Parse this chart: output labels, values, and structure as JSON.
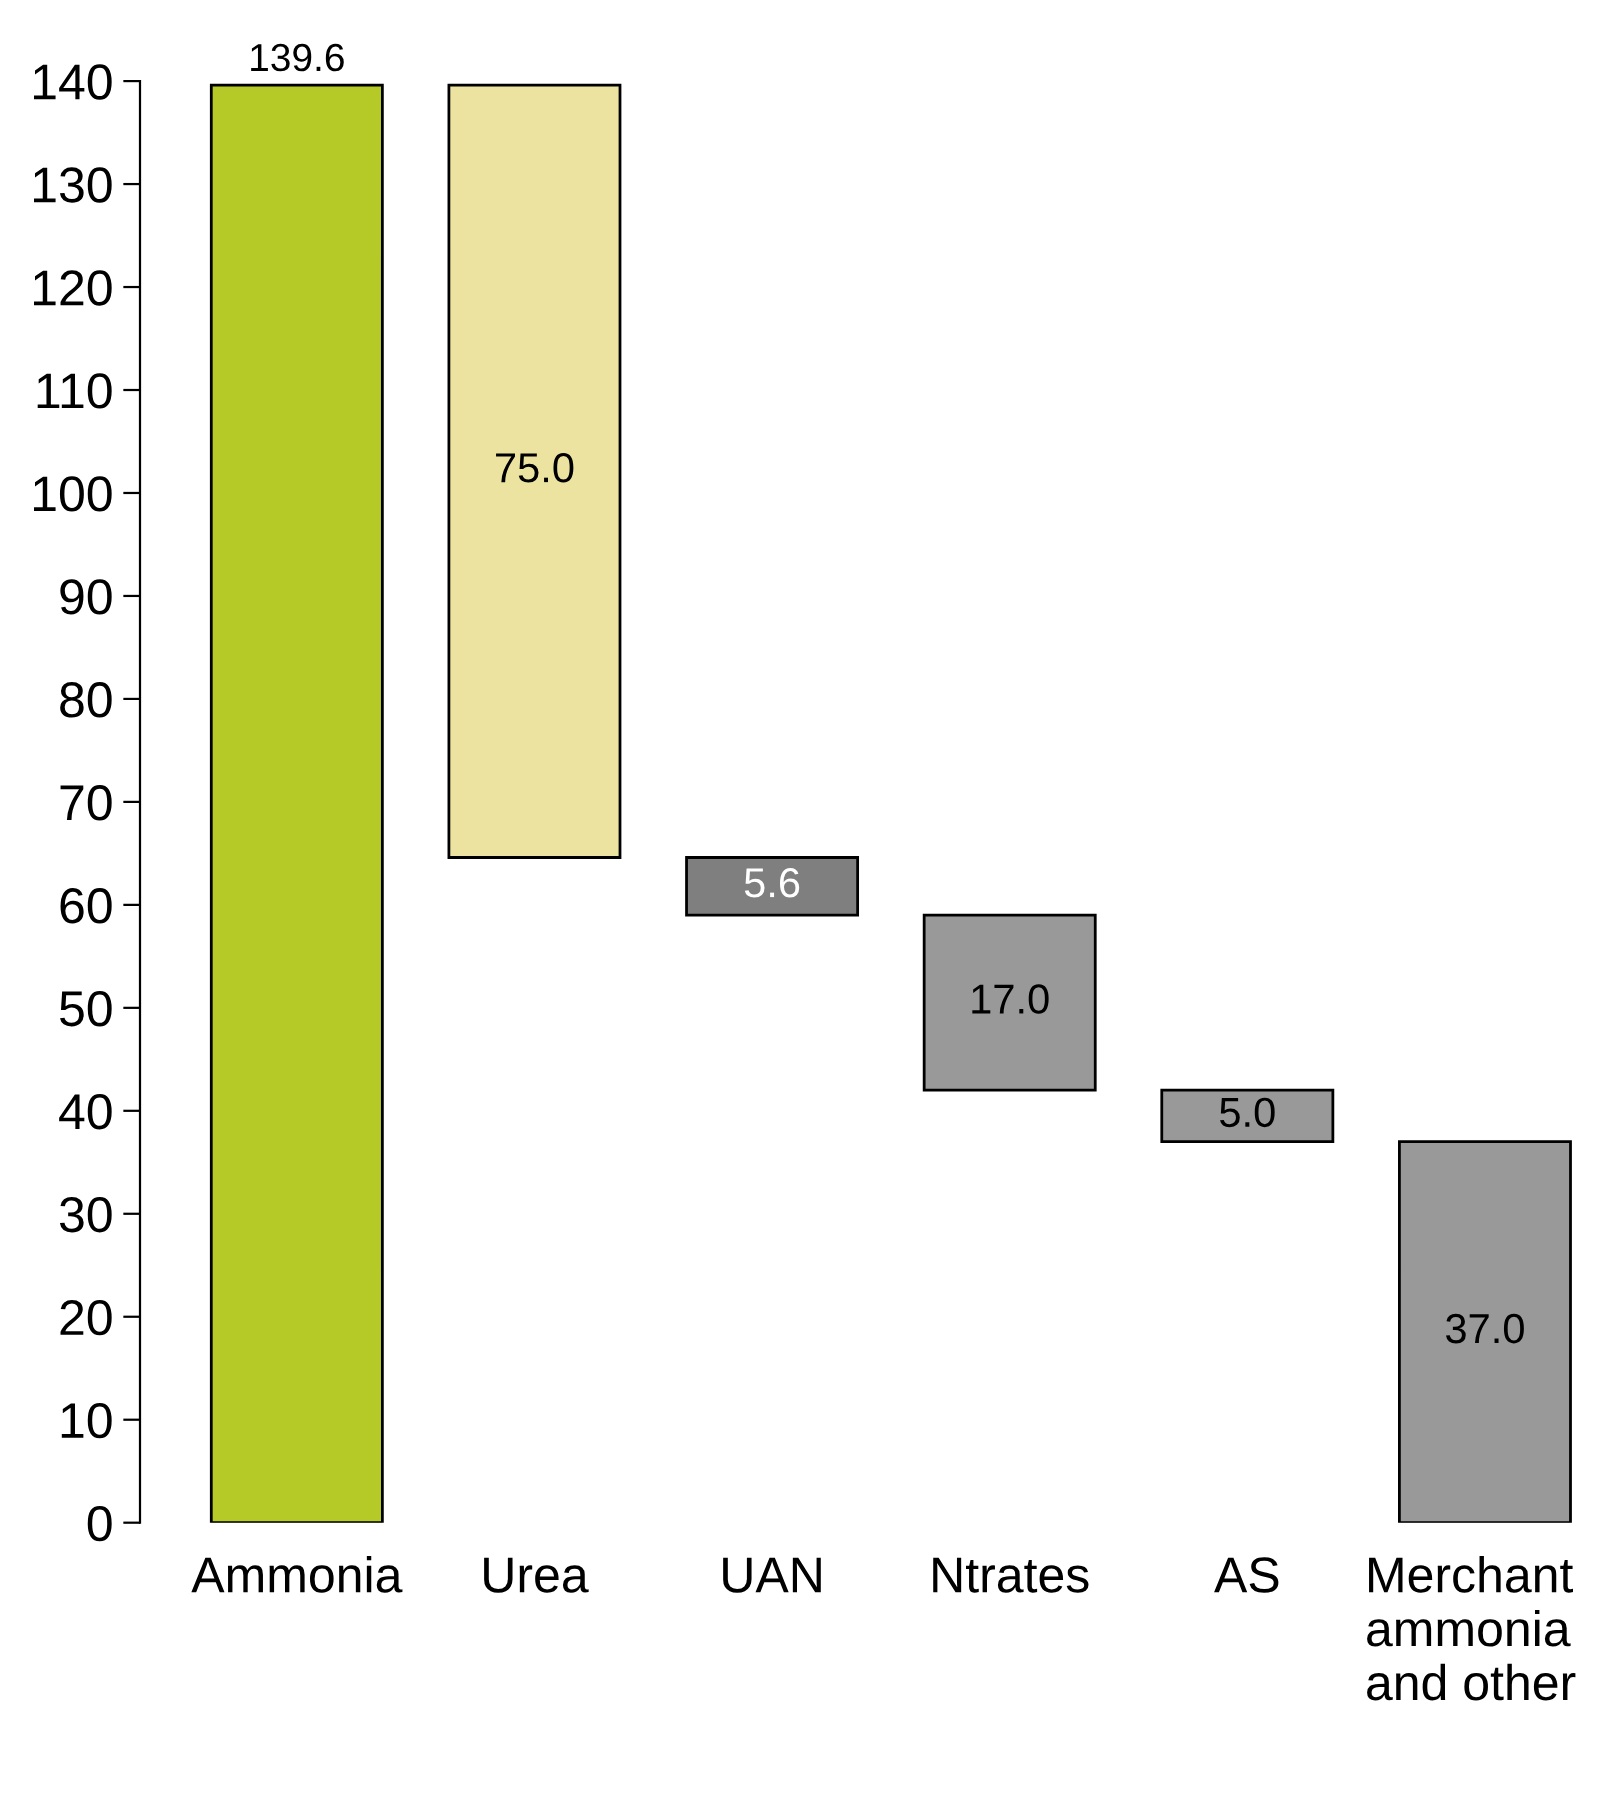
{
  "chart_data": {
    "type": "bar",
    "categories": [
      "Ammonia",
      "Urea",
      "UAN",
      "Ntrates",
      "AS",
      "Merchant\nammonia\nand other"
    ],
    "values": [
      139.6,
      75.0,
      5.6,
      17.0,
      5.0,
      37.0
    ],
    "base": [
      0,
      64.6,
      59.0,
      42.0,
      37.0,
      0
    ],
    "colors": [
      "#b5c927",
      "#ede3a0",
      "#7f7f7f",
      "#999999",
      "#999999",
      "#999999"
    ],
    "value_labels": [
      "139.6",
      "75.0",
      "5.6",
      "17.0",
      "5.0",
      "37.0"
    ],
    "ylim": [
      0,
      140
    ],
    "yticks": [
      0,
      10,
      20,
      30,
      40,
      50,
      60,
      70,
      80,
      90,
      100,
      110,
      120,
      130,
      140
    ],
    "grid": false,
    "legend": false
  }
}
